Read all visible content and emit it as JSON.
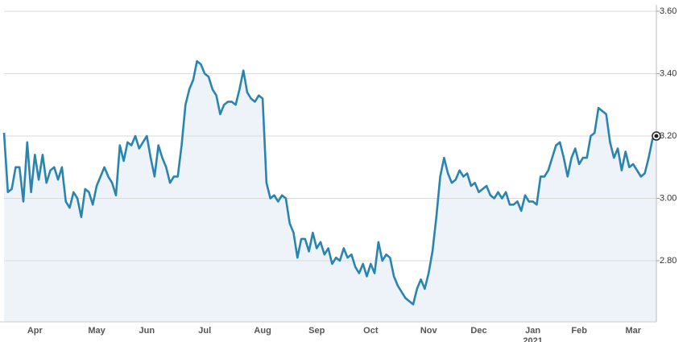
{
  "chart_data": {
    "type": "line",
    "categories": [
      null,
      null,
      null,
      null,
      null,
      null,
      null,
      null,
      "Apr",
      null,
      null,
      null,
      null,
      null,
      null,
      null,
      null,
      null,
      null,
      null,
      null,
      null,
      null,
      null,
      "May",
      null,
      null,
      null,
      null,
      null,
      null,
      null,
      null,
      null,
      null,
      null,
      null,
      "Jun",
      null,
      null,
      null,
      null,
      null,
      null,
      null,
      null,
      null,
      null,
      null,
      null,
      null,
      null,
      "Jul",
      null,
      null,
      null,
      null,
      null,
      null,
      null,
      null,
      null,
      null,
      null,
      null,
      null,
      null,
      "Aug",
      null,
      null,
      null,
      null,
      null,
      null,
      null,
      null,
      null,
      null,
      null,
      null,
      null,
      "Sep",
      null,
      null,
      null,
      null,
      null,
      null,
      null,
      null,
      null,
      null,
      null,
      null,
      null,
      "Oct",
      null,
      null,
      null,
      null,
      null,
      null,
      null,
      null,
      null,
      null,
      null,
      null,
      null,
      null,
      "Nov",
      null,
      null,
      null,
      null,
      null,
      null,
      null,
      null,
      null,
      null,
      null,
      null,
      "Dec",
      null,
      null,
      null,
      null,
      null,
      null,
      null,
      null,
      null,
      null,
      null,
      null,
      null,
      "Jan",
      null,
      null,
      null,
      null,
      null,
      null,
      null,
      null,
      null,
      null,
      null,
      "Feb",
      null,
      null,
      null,
      null,
      null,
      null,
      null,
      null,
      null,
      null,
      null,
      null,
      null,
      "Mar",
      null,
      null,
      null,
      null,
      null,
      null
    ],
    "year_label": "2021",
    "series": [
      {
        "color": "#2a84b0",
        "area_color": "#eef3f9",
        "values": [
          3.21,
          3.02,
          3.03,
          3.1,
          3.1,
          2.99,
          3.18,
          3.02,
          3.14,
          3.06,
          3.14,
          3.05,
          3.09,
          3.1,
          3.06,
          3.1,
          2.99,
          2.97,
          3.02,
          3.0,
          2.94,
          3.03,
          3.02,
          2.98,
          3.04,
          3.07,
          3.1,
          3.07,
          3.05,
          3.01,
          3.17,
          3.12,
          3.18,
          3.17,
          3.2,
          3.16,
          3.18,
          3.2,
          3.13,
          3.07,
          3.17,
          3.13,
          3.1,
          3.05,
          3.07,
          3.07,
          3.17,
          3.3,
          3.35,
          3.38,
          3.44,
          3.43,
          3.4,
          3.39,
          3.35,
          3.33,
          3.27,
          3.3,
          3.31,
          3.31,
          3.3,
          3.35,
          3.41,
          3.34,
          3.32,
          3.31,
          3.33,
          3.32,
          3.05,
          3.0,
          3.01,
          2.99,
          3.01,
          3.0,
          2.92,
          2.89,
          2.81,
          2.87,
          2.87,
          2.83,
          2.89,
          2.84,
          2.86,
          2.82,
          2.84,
          2.79,
          2.81,
          2.8,
          2.84,
          2.81,
          2.82,
          2.78,
          2.76,
          2.79,
          2.75,
          2.79,
          2.76,
          2.86,
          2.8,
          2.82,
          2.81,
          2.75,
          2.72,
          2.7,
          2.68,
          2.67,
          2.66,
          2.71,
          2.74,
          2.71,
          2.76,
          2.83,
          2.94,
          3.07,
          3.13,
          3.08,
          3.05,
          3.06,
          3.09,
          3.07,
          3.08,
          3.04,
          3.05,
          3.02,
          3.03,
          3.04,
          3.01,
          3.0,
          3.02,
          3.0,
          3.02,
          2.98,
          2.98,
          2.99,
          2.96,
          3.01,
          2.99,
          2.99,
          2.98,
          3.07,
          3.07,
          3.09,
          3.13,
          3.17,
          3.18,
          3.13,
          3.07,
          3.13,
          3.16,
          3.11,
          3.13,
          3.13,
          3.2,
          3.21,
          3.29,
          3.28,
          3.27,
          3.18,
          3.13,
          3.16,
          3.09,
          3.15,
          3.1,
          3.11,
          3.09,
          3.07,
          3.08,
          3.13,
          3.19,
          3.2
        ]
      }
    ],
    "ylim": [
      2.604,
      3.6
    ],
    "yticks": [
      {
        "value": 2.8,
        "label": "2.80"
      },
      {
        "value": 3.0,
        "label": "3.00"
      },
      {
        "value": 3.2,
        "label": "3.20"
      },
      {
        "value": 3.4,
        "label": "3.40"
      },
      {
        "value": 3.6,
        "label": "3.60"
      }
    ],
    "grid": true
  }
}
